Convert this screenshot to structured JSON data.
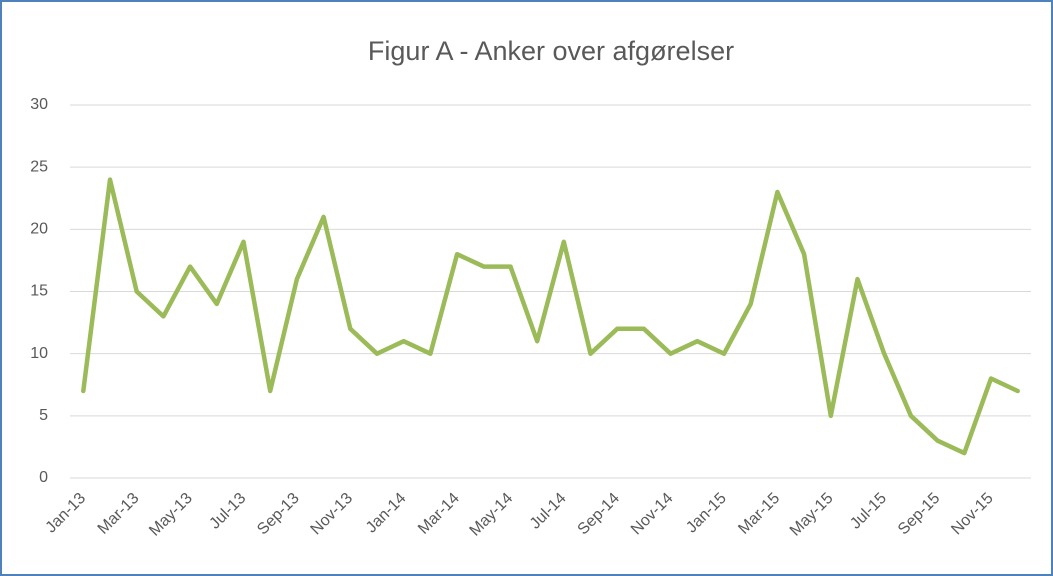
{
  "chart_data": {
    "type": "line",
    "title": "Figur A - Anker over afgørelser",
    "categories": [
      "Jan-13",
      null,
      "Mar-13",
      null,
      "May-13",
      null,
      "Jul-13",
      null,
      "Sep-13",
      null,
      "Nov-13",
      null,
      "Jan-14",
      null,
      "Mar-14",
      null,
      "May-14",
      null,
      "Jul-14",
      null,
      "Sep-14",
      null,
      "Nov-14",
      null,
      "Jan-15",
      null,
      "Mar-15",
      null,
      "May-15",
      null,
      "Jul-15",
      null,
      "Sep-15",
      null,
      "Nov-15",
      null
    ],
    "values": [
      7,
      24,
      15,
      13,
      17,
      14,
      19,
      7,
      16,
      21,
      12,
      10,
      11,
      10,
      18,
      17,
      17,
      11,
      19,
      10,
      12,
      12,
      10,
      11,
      10,
      14,
      23,
      18,
      5,
      16,
      10,
      5,
      3,
      2,
      8,
      7
    ],
    "color": "#9bbb59",
    "ylim": [
      0,
      30
    ],
    "yticks": [
      0,
      5,
      10,
      15,
      20,
      25,
      30
    ],
    "grid": true
  }
}
